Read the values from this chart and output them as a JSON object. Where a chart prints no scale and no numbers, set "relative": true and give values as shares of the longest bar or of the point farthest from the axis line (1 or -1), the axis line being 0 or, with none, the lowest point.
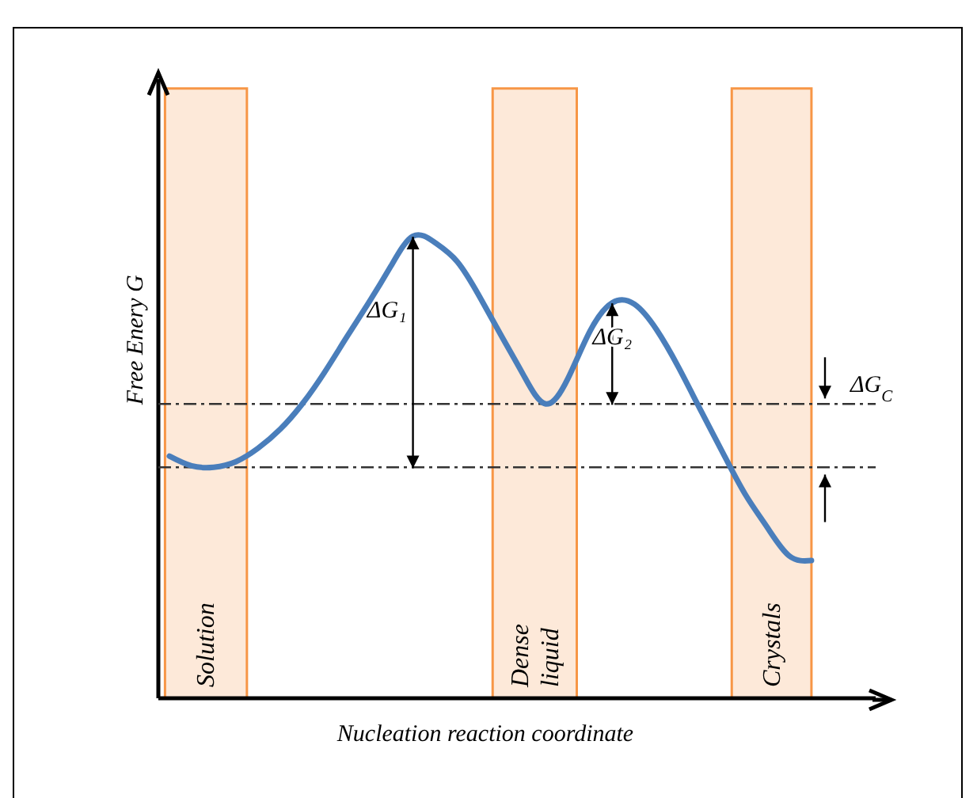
{
  "chart_data": {
    "type": "line",
    "relative": true,
    "xlabel": "Nucleation reaction coordinate",
    "ylabel": "Free Enery G",
    "categories": [
      null,
      null,
      null,
      null,
      null,
      null,
      null,
      null,
      null,
      null,
      null,
      null,
      null,
      null,
      null,
      null,
      null,
      null,
      null,
      null,
      null,
      null,
      null,
      null,
      null,
      null,
      null,
      null,
      null,
      null
    ],
    "series": [
      {
        "color": "#4a7ebb",
        "values": [
          0.524,
          0.503,
          0.5,
          0.512,
          0.541,
          0.582,
          0.637,
          0.705,
          0.781,
          0.856,
          0.935,
          1,
          0.986,
          0.945,
          0.87,
          0.784,
          0.699,
          0.637,
          0.692,
          0.795,
          0.856,
          0.853,
          0.798,
          0.716,
          0.623,
          0.531,
          0.442,
          0.37,
          0.308,
          0.298
        ]
      }
    ],
    "marker": "none",
    "line_style": "solid",
    "grid": false,
    "legend": false,
    "tick_labels": false,
    "ref_lines": [
      {
        "axis": "y",
        "value": 0.5,
        "line_style": "dashdot"
      },
      {
        "axis": "y",
        "value": 0.637,
        "line_style": "dashdot"
      }
    ],
    "annotations": [
      "ΔG₁",
      "ΔG₂",
      "ΔG$_{C}$",
      "Solution",
      "Dense liquid",
      "Crystals"
    ]
  }
}
